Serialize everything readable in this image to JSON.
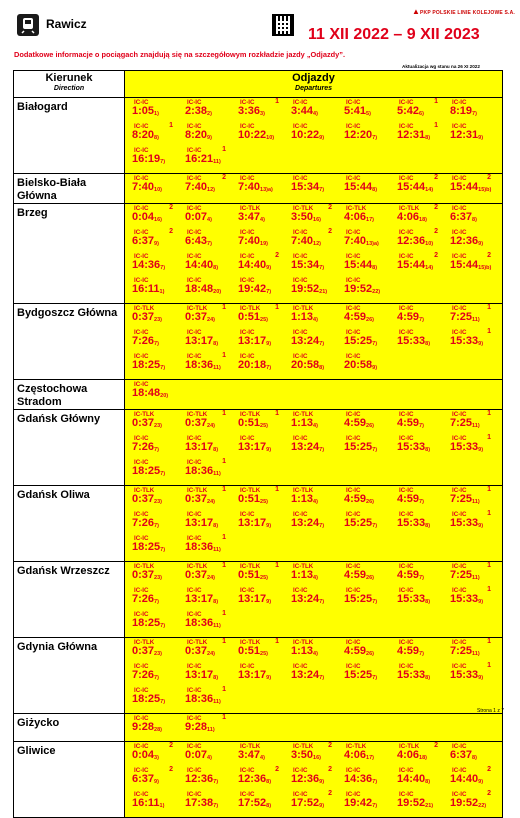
{
  "header": {
    "station": "Rawicz",
    "dates": "11 XII 2022 – 9 XII 2023",
    "brand": "PKP POLSKIE LINIE KOLEJOWE S.A.",
    "info": "Dodatkowe informacje o pociągach znajdują się na szczegółowym rozkładzie jazdy „Odjazdy”.",
    "updated": "Aktualizacja wg stanu na 26 XI 2022"
  },
  "table": {
    "col1_main": "Kierunek",
    "col1_sub": "Direction",
    "col2_main": "Odjazdy",
    "col2_sub": "Departures"
  },
  "rows": [
    {
      "dest": "Białogard",
      "deps": [
        {
          "c": "IC-IC",
          "p": "",
          "t": "1:05",
          "n": "1)"
        },
        {
          "c": "IC-IC",
          "p": "",
          "t": "2:38",
          "n": "2)"
        },
        {
          "c": "IC-IC",
          "p": "1",
          "t": "3:36",
          "n": "3)"
        },
        {
          "c": "IC-IC",
          "p": "",
          "t": "3:44",
          "n": "4)"
        },
        {
          "c": "IC-IC",
          "p": "",
          "t": "5:41",
          "n": "5)"
        },
        {
          "c": "IC-IC",
          "p": "1",
          "t": "5:42",
          "n": "6)"
        },
        {
          "c": "IC-IC",
          "p": "",
          "t": "8:19",
          "n": "7)"
        },
        {
          "c": "IC-IC",
          "p": "1",
          "t": "8:20",
          "n": "8)"
        },
        {
          "c": "IC-IC",
          "p": "",
          "t": "8:20",
          "n": "9)"
        },
        {
          "c": "IC-IC",
          "p": "",
          "t": "10:22",
          "n": "10)"
        },
        {
          "c": "IC-IC",
          "p": "",
          "t": "10:22",
          "n": "9)"
        },
        {
          "c": "IC-IC",
          "p": "",
          "t": "12:20",
          "n": "7)"
        },
        {
          "c": "IC-IC",
          "p": "1",
          "t": "12:31",
          "n": "8)"
        },
        {
          "c": "IC-IC",
          "p": "",
          "t": "12:31",
          "n": "9)"
        },
        {
          "c": "IC-IC",
          "p": "",
          "t": "16:19",
          "n": "7)"
        },
        {
          "c": "IC-IC",
          "p": "1",
          "t": "16:21",
          "n": "11)"
        }
      ]
    },
    {
      "dest": "Bielsko-Biała Główna",
      "deps": [
        {
          "c": "IC-IC",
          "p": "",
          "t": "7:40",
          "n": "10)"
        },
        {
          "c": "IC-IC",
          "p": "2",
          "t": "7:40",
          "n": "12)"
        },
        {
          "c": "IC-IC",
          "p": "",
          "t": "7:40",
          "n": "13)a)"
        },
        {
          "c": "IC-IC",
          "p": "",
          "t": "15:34",
          "n": "7)"
        },
        {
          "c": "IC-IC",
          "p": "",
          "t": "15:44",
          "n": "8)"
        },
        {
          "c": "IC-IC",
          "p": "2",
          "t": "15:44",
          "n": "14)"
        },
        {
          "c": "IC-IC",
          "p": "2",
          "t": "15:44",
          "n": "15)b)"
        }
      ]
    },
    {
      "dest": "Brzeg",
      "deps": [
        {
          "c": "IC-IC",
          "p": "2",
          "t": "0:04",
          "n": "16)"
        },
        {
          "c": "IC-IC",
          "p": "",
          "t": "0:07",
          "n": "4)"
        },
        {
          "c": "IC-TLK",
          "p": "",
          "t": "3:47",
          "n": "4)"
        },
        {
          "c": "IC-TLK",
          "p": "2",
          "t": "3:50",
          "n": "16)"
        },
        {
          "c": "IC-TLK",
          "p": "",
          "t": "4:06",
          "n": "17)"
        },
        {
          "c": "IC-TLK",
          "p": "2",
          "t": "4:06",
          "n": "18)"
        },
        {
          "c": "IC-IC",
          "p": "",
          "t": "6:37",
          "n": "8)"
        },
        {
          "c": "IC-IC",
          "p": "2",
          "t": "6:37",
          "n": "9)"
        },
        {
          "c": "IC-IC",
          "p": "",
          "t": "6:43",
          "n": "7)"
        },
        {
          "c": "IC-IC",
          "p": "",
          "t": "7:40",
          "n": "19)"
        },
        {
          "c": "IC-IC",
          "p": "2",
          "t": "7:40",
          "n": "12)"
        },
        {
          "c": "IC-IC",
          "p": "",
          "t": "7:40",
          "n": "13)a)"
        },
        {
          "c": "IC-IC",
          "p": "2",
          "t": "12:36",
          "n": "10)"
        },
        {
          "c": "IC-IC",
          "p": "",
          "t": "12:36",
          "n": "9)"
        },
        {
          "c": "IC-IC",
          "p": "",
          "t": "14:36",
          "n": "7)"
        },
        {
          "c": "IC-IC",
          "p": "",
          "t": "14:40",
          "n": "8)"
        },
        {
          "c": "IC-IC",
          "p": "2",
          "t": "14:40",
          "n": "9)"
        },
        {
          "c": "IC-IC",
          "p": "",
          "t": "15:34",
          "n": "7)"
        },
        {
          "c": "IC-IC",
          "p": "",
          "t": "15:44",
          "n": "8)"
        },
        {
          "c": "IC-IC",
          "p": "2",
          "t": "15:44",
          "n": "14)"
        },
        {
          "c": "IC-IC",
          "p": "2",
          "t": "15:44",
          "n": "15)b)"
        },
        {
          "c": "IC-IC",
          "p": "",
          "t": "16:11",
          "n": "1)"
        },
        {
          "c": "IC-IC",
          "p": "",
          "t": "18:48",
          "n": "20)"
        },
        {
          "c": "IC-IC",
          "p": "",
          "t": "19:42",
          "n": "7)"
        },
        {
          "c": "IC-IC",
          "p": "",
          "t": "19:52",
          "n": "21)"
        },
        {
          "c": "IC-IC",
          "p": "",
          "t": "19:52",
          "n": "22)"
        }
      ]
    },
    {
      "dest": "Bydgoszcz Główna",
      "deps": [
        {
          "c": "IC-TLK",
          "p": "",
          "t": "0:37",
          "n": "23)"
        },
        {
          "c": "IC-TLK",
          "p": "1",
          "t": "0:37",
          "n": "24)"
        },
        {
          "c": "IC-TLK",
          "p": "1",
          "t": "0:51",
          "n": "25)"
        },
        {
          "c": "IC-TLK",
          "p": "",
          "t": "1:13",
          "n": "4)"
        },
        {
          "c": "IC-IC",
          "p": "",
          "t": "4:59",
          "n": "26)"
        },
        {
          "c": "IC-IC",
          "p": "",
          "t": "4:59",
          "n": "7)"
        },
        {
          "c": "IC-IC",
          "p": "1",
          "t": "7:25",
          "n": "11)"
        },
        {
          "c": "IC-IC",
          "p": "",
          "t": "7:26",
          "n": "7)"
        },
        {
          "c": "IC-IC",
          "p": "",
          "t": "13:17",
          "n": "8)"
        },
        {
          "c": "IC-IC",
          "p": "",
          "t": "13:17",
          "n": "9)"
        },
        {
          "c": "IC-IC",
          "p": "",
          "t": "13:24",
          "n": "7)"
        },
        {
          "c": "IC-IC",
          "p": "",
          "t": "15:25",
          "n": "7)"
        },
        {
          "c": "IC-IC",
          "p": "",
          "t": "15:33",
          "n": "8)"
        },
        {
          "c": "IC-IC",
          "p": "1",
          "t": "15:33",
          "n": "9)"
        },
        {
          "c": "IC-IC",
          "p": "",
          "t": "18:25",
          "n": "7)"
        },
        {
          "c": "IC-IC",
          "p": "1",
          "t": "18:36",
          "n": "11)"
        },
        {
          "c": "IC-IC",
          "p": "",
          "t": "20:18",
          "n": "7)"
        },
        {
          "c": "IC-IC",
          "p": "",
          "t": "20:58",
          "n": "8)"
        },
        {
          "c": "IC-IC",
          "p": "",
          "t": "20:58",
          "n": "9)"
        }
      ]
    },
    {
      "dest": "Częstochowa Stradom",
      "deps": [
        {
          "c": "IC-IC",
          "p": "",
          "t": "18:48",
          "n": "20)"
        }
      ]
    },
    {
      "dest": "Gdańsk Główny",
      "deps": [
        {
          "c": "IC-TLK",
          "p": "",
          "t": "0:37",
          "n": "23)"
        },
        {
          "c": "IC-TLK",
          "p": "1",
          "t": "0:37",
          "n": "24)"
        },
        {
          "c": "IC-TLK",
          "p": "1",
          "t": "0:51",
          "n": "25)"
        },
        {
          "c": "IC-TLK",
          "p": "",
          "t": "1:13",
          "n": "4)"
        },
        {
          "c": "IC-IC",
          "p": "",
          "t": "4:59",
          "n": "26)"
        },
        {
          "c": "IC-IC",
          "p": "",
          "t": "4:59",
          "n": "7)"
        },
        {
          "c": "IC-IC",
          "p": "1",
          "t": "7:25",
          "n": "11)"
        },
        {
          "c": "IC-IC",
          "p": "",
          "t": "7:26",
          "n": "7)"
        },
        {
          "c": "IC-IC",
          "p": "",
          "t": "13:17",
          "n": "8)"
        },
        {
          "c": "IC-IC",
          "p": "",
          "t": "13:17",
          "n": "9)"
        },
        {
          "c": "IC-IC",
          "p": "",
          "t": "13:24",
          "n": "7)"
        },
        {
          "c": "IC-IC",
          "p": "",
          "t": "15:25",
          "n": "7)"
        },
        {
          "c": "IC-IC",
          "p": "",
          "t": "15:33",
          "n": "8)"
        },
        {
          "c": "IC-IC",
          "p": "1",
          "t": "15:33",
          "n": "9)"
        },
        {
          "c": "IC-IC",
          "p": "",
          "t": "18:25",
          "n": "7)"
        },
        {
          "c": "IC-IC",
          "p": "1",
          "t": "18:36",
          "n": "11)"
        }
      ]
    },
    {
      "dest": "Gdańsk Oliwa",
      "deps": [
        {
          "c": "IC-TLK",
          "p": "",
          "t": "0:37",
          "n": "23)"
        },
        {
          "c": "IC-TLK",
          "p": "1",
          "t": "0:37",
          "n": "24)"
        },
        {
          "c": "IC-TLK",
          "p": "1",
          "t": "0:51",
          "n": "25)"
        },
        {
          "c": "IC-TLK",
          "p": "",
          "t": "1:13",
          "n": "4)"
        },
        {
          "c": "IC-IC",
          "p": "",
          "t": "4:59",
          "n": "26)"
        },
        {
          "c": "IC-IC",
          "p": "",
          "t": "4:59",
          "n": "7)"
        },
        {
          "c": "IC-IC",
          "p": "1",
          "t": "7:25",
          "n": "11)"
        },
        {
          "c": "IC-IC",
          "p": "",
          "t": "7:26",
          "n": "7)"
        },
        {
          "c": "IC-IC",
          "p": "",
          "t": "13:17",
          "n": "8)"
        },
        {
          "c": "IC-IC",
          "p": "",
          "t": "13:17",
          "n": "9)"
        },
        {
          "c": "IC-IC",
          "p": "",
          "t": "13:24",
          "n": "7)"
        },
        {
          "c": "IC-IC",
          "p": "",
          "t": "15:25",
          "n": "7)"
        },
        {
          "c": "IC-IC",
          "p": "",
          "t": "15:33",
          "n": "8)"
        },
        {
          "c": "IC-IC",
          "p": "1",
          "t": "15:33",
          "n": "9)"
        },
        {
          "c": "IC-IC",
          "p": "",
          "t": "18:25",
          "n": "7)"
        },
        {
          "c": "IC-IC",
          "p": "1",
          "t": "18:36",
          "n": "11)"
        }
      ]
    },
    {
      "dest": "Gdańsk Wrzeszcz",
      "deps": [
        {
          "c": "IC-TLK",
          "p": "",
          "t": "0:37",
          "n": "23)"
        },
        {
          "c": "IC-TLK",
          "p": "1",
          "t": "0:37",
          "n": "24)"
        },
        {
          "c": "IC-TLK",
          "p": "1",
          "t": "0:51",
          "n": "25)"
        },
        {
          "c": "IC-TLK",
          "p": "",
          "t": "1:13",
          "n": "4)"
        },
        {
          "c": "IC-IC",
          "p": "",
          "t": "4:59",
          "n": "26)"
        },
        {
          "c": "IC-IC",
          "p": "",
          "t": "4:59",
          "n": "7)"
        },
        {
          "c": "IC-IC",
          "p": "1",
          "t": "7:25",
          "n": "11)"
        },
        {
          "c": "IC-IC",
          "p": "",
          "t": "7:26",
          "n": "7)"
        },
        {
          "c": "IC-IC",
          "p": "",
          "t": "13:17",
          "n": "8)"
        },
        {
          "c": "IC-IC",
          "p": "",
          "t": "13:17",
          "n": "9)"
        },
        {
          "c": "IC-IC",
          "p": "",
          "t": "13:24",
          "n": "7)"
        },
        {
          "c": "IC-IC",
          "p": "",
          "t": "15:25",
          "n": "7)"
        },
        {
          "c": "IC-IC",
          "p": "",
          "t": "15:33",
          "n": "8)"
        },
        {
          "c": "IC-IC",
          "p": "1",
          "t": "15:33",
          "n": "9)"
        },
        {
          "c": "IC-IC",
          "p": "",
          "t": "18:25",
          "n": "7)"
        },
        {
          "c": "IC-IC",
          "p": "1",
          "t": "18:36",
          "n": "11)"
        }
      ]
    },
    {
      "dest": "Gdynia Główna",
      "deps": [
        {
          "c": "IC-TLK",
          "p": "",
          "t": "0:37",
          "n": "23)"
        },
        {
          "c": "IC-TLK",
          "p": "1",
          "t": "0:37",
          "n": "24)"
        },
        {
          "c": "IC-TLK",
          "p": "1",
          "t": "0:51",
          "n": "25)"
        },
        {
          "c": "IC-TLK",
          "p": "",
          "t": "1:13",
          "n": "4)"
        },
        {
          "c": "IC-IC",
          "p": "",
          "t": "4:59",
          "n": "26)"
        },
        {
          "c": "IC-IC",
          "p": "",
          "t": "4:59",
          "n": "7)"
        },
        {
          "c": "IC-IC",
          "p": "1",
          "t": "7:25",
          "n": "11)"
        },
        {
          "c": "IC-IC",
          "p": "",
          "t": "7:26",
          "n": "7)"
        },
        {
          "c": "IC-IC",
          "p": "",
          "t": "13:17",
          "n": "8)"
        },
        {
          "c": "IC-IC",
          "p": "",
          "t": "13:17",
          "n": "9)"
        },
        {
          "c": "IC-IC",
          "p": "",
          "t": "13:24",
          "n": "7)"
        },
        {
          "c": "IC-IC",
          "p": "",
          "t": "15:25",
          "n": "7)"
        },
        {
          "c": "IC-IC",
          "p": "",
          "t": "15:33",
          "n": "8)"
        },
        {
          "c": "IC-IC",
          "p": "1",
          "t": "15:33",
          "n": "9)"
        },
        {
          "c": "IC-IC",
          "p": "",
          "t": "18:25",
          "n": "7)"
        },
        {
          "c": "IC-IC",
          "p": "1",
          "t": "18:36",
          "n": "11)"
        }
      ]
    },
    {
      "dest": "Giżycko",
      "deps": [
        {
          "c": "IC-IC",
          "p": "",
          "t": "9:28",
          "n": "28)"
        },
        {
          "c": "IC-IC",
          "p": "1",
          "t": "9:28",
          "n": "11)"
        }
      ]
    },
    {
      "dest": "Gliwice",
      "deps": [
        {
          "c": "IC-IC",
          "p": "2",
          "t": "0:04",
          "n": "3)"
        },
        {
          "c": "IC-IC",
          "p": "",
          "t": "0:07",
          "n": "4)"
        },
        {
          "c": "IC-TLK",
          "p": "",
          "t": "3:47",
          "n": "4)"
        },
        {
          "c": "IC-TLK",
          "p": "2",
          "t": "3:50",
          "n": "16)"
        },
        {
          "c": "IC-TLK",
          "p": "",
          "t": "4:06",
          "n": "17)"
        },
        {
          "c": "IC-TLK",
          "p": "2",
          "t": "4:06",
          "n": "18)"
        },
        {
          "c": "IC-IC",
          "p": "",
          "t": "6:37",
          "n": "8)"
        },
        {
          "c": "IC-IC",
          "p": "2",
          "t": "6:37",
          "n": "9)"
        },
        {
          "c": "IC-IC",
          "p": "",
          "t": "12:36",
          "n": "7)"
        },
        {
          "c": "IC-IC",
          "p": "2",
          "t": "12:36",
          "n": "8)"
        },
        {
          "c": "IC-IC",
          "p": "2",
          "t": "12:36",
          "n": "9)"
        },
        {
          "c": "IC-IC",
          "p": "",
          "t": "14:36",
          "n": "7)"
        },
        {
          "c": "IC-IC",
          "p": "",
          "t": "14:40",
          "n": "8)"
        },
        {
          "c": "IC-IC",
          "p": "2",
          "t": "14:40",
          "n": "9)"
        },
        {
          "c": "IC-IC",
          "p": "",
          "t": "16:11",
          "n": "1)"
        },
        {
          "c": "IC-IC",
          "p": "",
          "t": "17:38",
          "n": "7)"
        },
        {
          "c": "IC-IC",
          "p": "",
          "t": "17:52",
          "n": "8)"
        },
        {
          "c": "IC-IC",
          "p": "2",
          "t": "17:52",
          "n": "9)"
        },
        {
          "c": "IC-IC",
          "p": "",
          "t": "19:42",
          "n": "7)"
        },
        {
          "c": "IC-IC",
          "p": "",
          "t": "19:52",
          "n": "21)"
        },
        {
          "c": "IC-IC",
          "p": "2",
          "t": "19:52",
          "n": "22)"
        }
      ]
    }
  ],
  "footer": {
    "page": "Strona 1 z 7"
  }
}
